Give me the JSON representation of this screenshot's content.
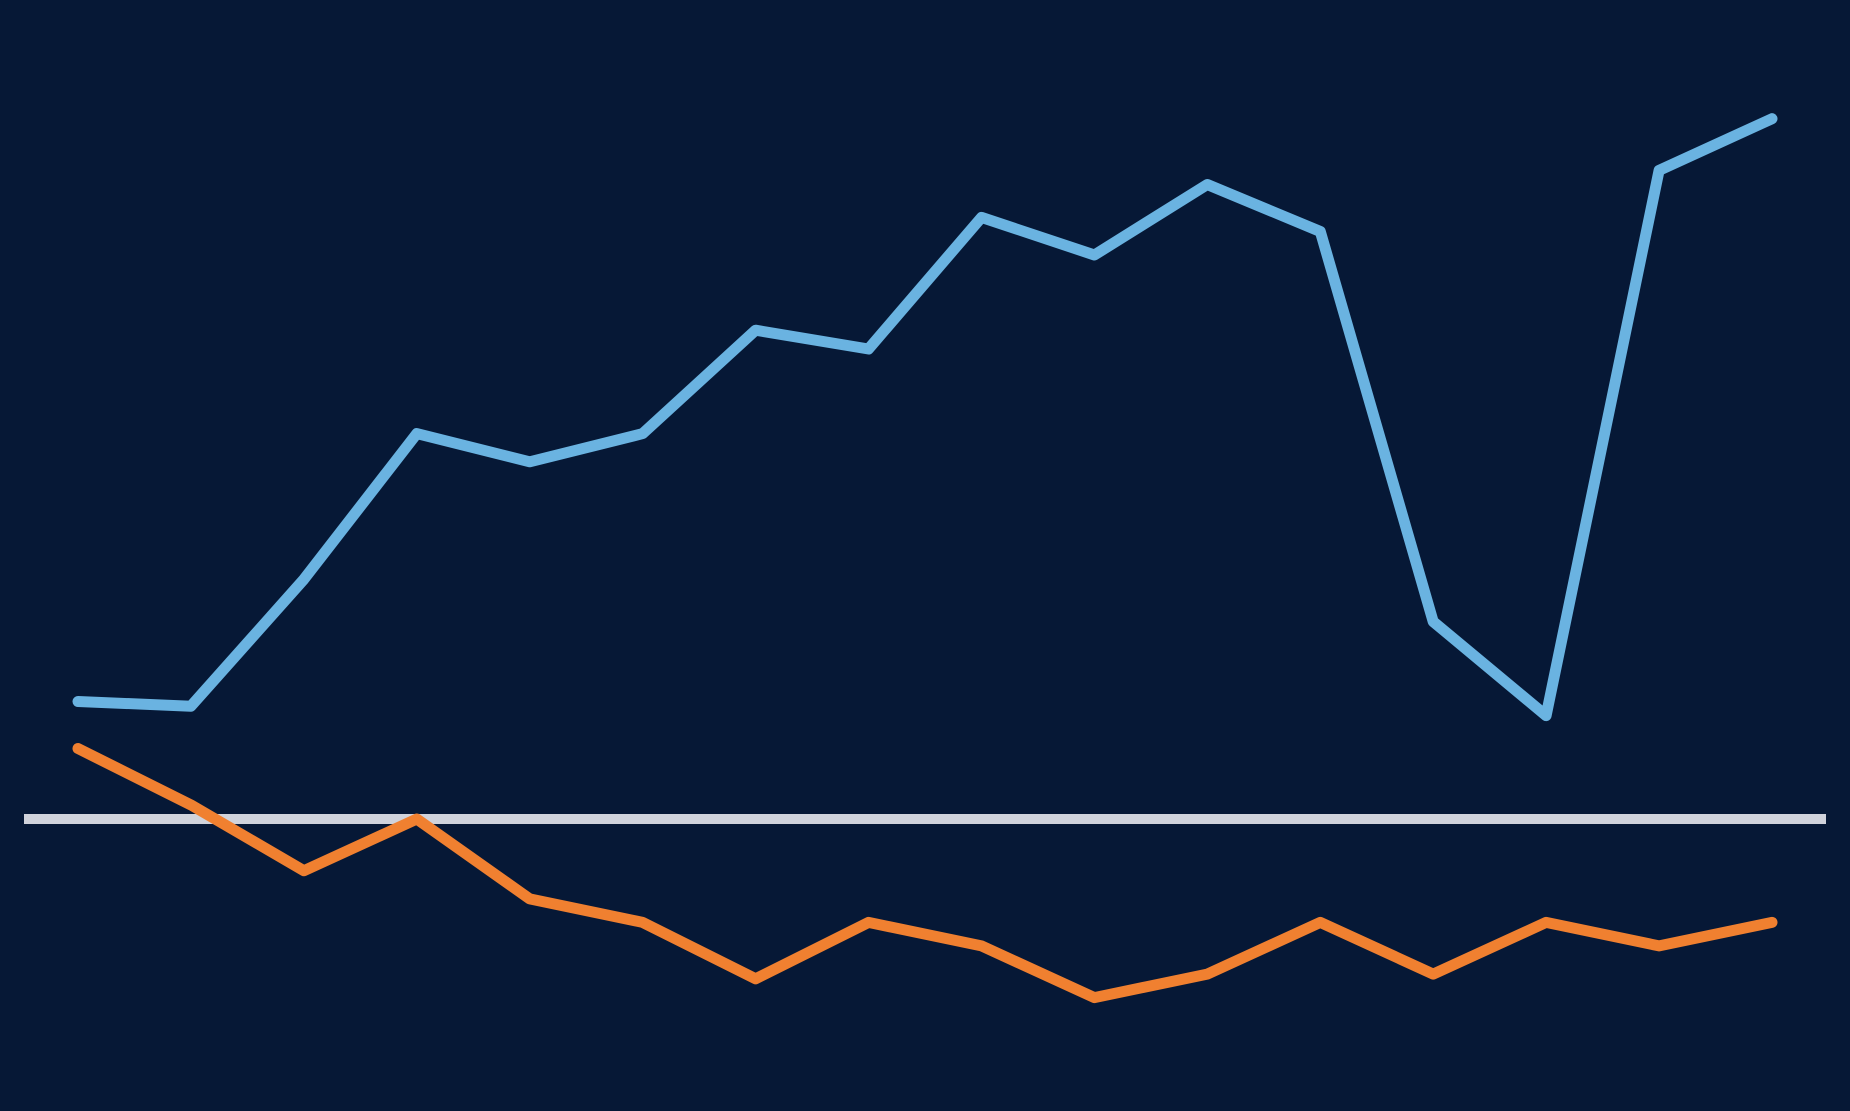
{
  "chart_data": {
    "type": "line",
    "title": "",
    "xlabel": "",
    "ylabel": "",
    "x": [
      1,
      2,
      3,
      4,
      5,
      6,
      7,
      8,
      9,
      10,
      11,
      12,
      13,
      14,
      15,
      16
    ],
    "xlim": [
      1,
      16
    ],
    "ylim": [
      -5,
      15
    ],
    "grid": false,
    "legend": "none",
    "baseline": 0,
    "series": [
      {
        "color": "#6ab3e1",
        "values": [
          2.5,
          2.4,
          5.1,
          8.2,
          7.6,
          8.2,
          10.4,
          10.0,
          12.8,
          12.0,
          13.5,
          12.5,
          4.2,
          2.2,
          13.8,
          14.9
        ]
      },
      {
        "color": "#f08030",
        "values": [
          1.5,
          0.3,
          -1.1,
          0.0,
          -1.7,
          -2.2,
          -3.4,
          -2.2,
          -2.7,
          -3.8,
          -3.3,
          -2.2,
          -3.3,
          -2.2,
          -2.7,
          -2.2
        ]
      }
    ],
    "baseline_color": "#d0d3dc",
    "background": "#061836"
  }
}
